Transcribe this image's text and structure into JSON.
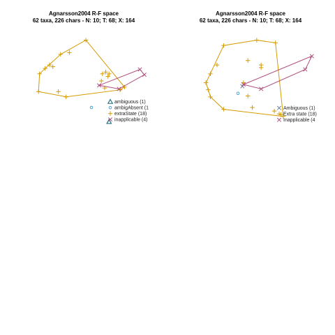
{
  "chart_data": [
    {
      "type": "scatter",
      "title": "Agnarsson2004 R-F space",
      "subtitle": "62 taxa, 226 chars - N: 10; T: 68; X: 164",
      "xlabel": "",
      "ylabel": "",
      "xlim": [
        0,
        1
      ],
      "ylim": [
        0,
        1
      ],
      "grid": false,
      "legend_position": "right",
      "series": [
        {
          "name": "ambiguous (1)",
          "marker": "triangle",
          "color": "#1a6e7a",
          "hull": false,
          "points": [
            [
              0.66,
              0.06
            ]
          ]
        },
        {
          "name": "ambigAbsent (1",
          "marker": "circle",
          "color": "#3a9bd0",
          "hull": false,
          "points": [
            [
              0.5,
              0.22
            ]
          ]
        },
        {
          "name": "extraState (18)",
          "marker": "plus",
          "color": "#d49b00",
          "hull": true,
          "points": [
            [
              0.08,
              0.66
            ],
            [
              0.12,
              0.7
            ],
            [
              0.15,
              0.68
            ],
            [
              0.03,
              0.6
            ],
            [
              0.02,
              0.4
            ],
            [
              0.22,
              0.82
            ],
            [
              0.3,
              0.84
            ],
            [
              0.45,
              0.98
            ],
            [
              0.6,
              0.6
            ],
            [
              0.63,
              0.62
            ],
            [
              0.65,
              0.57
            ],
            [
              0.66,
              0.6
            ],
            [
              0.59,
              0.52
            ],
            [
              0.62,
              0.44
            ],
            [
              0.2,
              0.4
            ],
            [
              0.27,
              0.34
            ],
            [
              0.76,
              0.42
            ],
            [
              0.8,
              0.45
            ]
          ]
        },
        {
          "name": "inapplicable (4)",
          "marker": "x",
          "color": "#b05080",
          "hull": true,
          "points": [
            [
              0.94,
              0.65
            ],
            [
              0.98,
              0.59
            ],
            [
              0.57,
              0.47
            ],
            [
              0.75,
              0.43
            ]
          ]
        }
      ]
    },
    {
      "type": "scatter",
      "title": "Agnarsson2004 R-F space",
      "subtitle": "62 taxa, 226 chars - N: 10; T: 68; X: 164",
      "xlabel": "",
      "ylabel": "",
      "xlim": [
        0,
        1
      ],
      "ylim": [
        0,
        1
      ],
      "grid": false,
      "legend_position": "right",
      "series": [
        {
          "name": "Ambiguous (1)",
          "marker": "x",
          "color": "#6a7f95",
          "hull": false,
          "points": [
            [
              0.35,
              0.46
            ]
          ]
        },
        {
          "name": "",
          "marker": "circle",
          "color": "#3a9bd0",
          "hull": false,
          "points": [
            [
              0.31,
              0.38
            ]
          ]
        },
        {
          "name": "Extra state (18)",
          "marker": "plus",
          "color": "#d49b00",
          "hull": true,
          "points": [
            [
              0.18,
              0.92
            ],
            [
              0.12,
              0.7
            ],
            [
              0.06,
              0.6
            ],
            [
              0.02,
              0.5
            ],
            [
              0.04,
              0.42
            ],
            [
              0.06,
              0.34
            ],
            [
              0.18,
              0.2
            ],
            [
              0.48,
              0.98
            ],
            [
              0.52,
              0.7
            ],
            [
              0.52,
              0.67
            ],
            [
              0.4,
              0.75
            ],
            [
              0.36,
              0.5
            ],
            [
              0.4,
              0.35
            ],
            [
              0.44,
              0.22
            ],
            [
              0.64,
              0.18
            ],
            [
              0.7,
              0.14
            ],
            [
              0.72,
              0.12
            ],
            [
              0.65,
              0.95
            ]
          ]
        },
        {
          "name": "Inapplicable (4",
          "marker": "x",
          "color": "#b05080",
          "hull": true,
          "points": [
            [
              0.98,
              0.8
            ],
            [
              0.92,
              0.65
            ],
            [
              0.36,
              0.48
            ],
            [
              0.52,
              0.43
            ]
          ]
        }
      ]
    }
  ]
}
